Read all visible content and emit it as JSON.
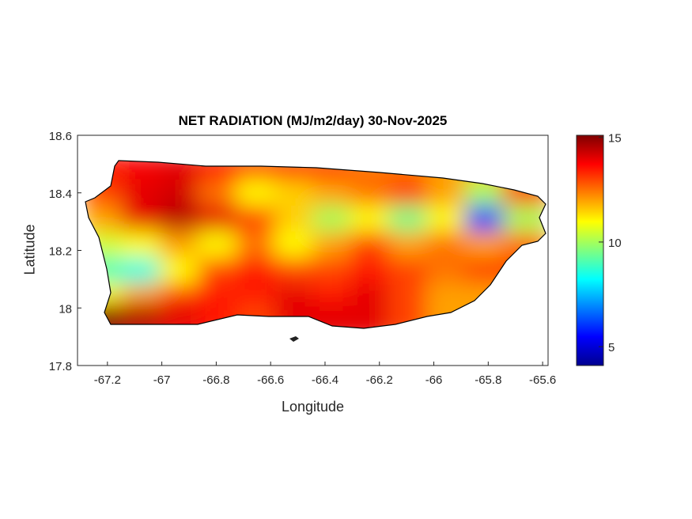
{
  "chart_data": {
    "type": "heatmap",
    "title": "NET RADIATION (MJ/m2/day) 30-Nov-2025",
    "xlabel": "Longitude",
    "ylabel": "Latitude",
    "xlim": [
      -67.31,
      -65.58
    ],
    "ylim": [
      17.8,
      18.6
    ],
    "xticks": [
      -67.2,
      -67,
      -66.8,
      -66.6,
      -66.4,
      -66.2,
      -66,
      -65.8,
      -65.6
    ],
    "xtick_labels": [
      "-67.2",
      "-67",
      "-66.8",
      "-66.6",
      "-66.4",
      "-66.2",
      "-66",
      "-65.8",
      "-65.6"
    ],
    "yticks": [
      18.6,
      18.4,
      18.2,
      18,
      17.8
    ],
    "ytick_labels": [
      "18.6",
      "18.4",
      "18.2",
      "18",
      "17.8"
    ],
    "colorbar": {
      "clim": [
        4.1,
        15.1
      ],
      "ticks": [
        15,
        10,
        5
      ],
      "tick_labels": [
        "15",
        "10",
        "5"
      ],
      "colormap": "jet"
    },
    "grid_lon": [
      -67.2,
      -67.06,
      -66.92,
      -66.78,
      -66.64,
      -66.5,
      -66.36,
      -66.22,
      -66.08,
      -65.94,
      -65.8,
      -65.66
    ],
    "grid_lat": [
      18.47,
      18.38,
      18.29,
      18.2,
      18.11,
      18.02,
      17.95
    ],
    "values": [
      [
        13.5,
        13.8,
        14,
        13.5,
        13,
        13.2,
        13,
        12.5,
        12.5,
        12,
        11.5,
        12
      ],
      [
        13,
        14,
        14.2,
        12.5,
        11,
        11.5,
        12,
        12.5,
        13,
        12,
        10,
        13
      ],
      [
        12,
        14,
        14.5,
        14,
        13,
        11.5,
        10,
        11,
        9.5,
        11,
        6,
        10
      ],
      [
        10.5,
        11,
        12,
        11,
        12.5,
        11,
        12,
        13,
        12,
        12.5,
        12,
        12.5
      ],
      [
        9,
        8.5,
        11,
        13,
        13.5,
        13,
        13,
        13.5,
        13,
        12.5,
        13,
        13
      ],
      [
        11,
        12,
        13,
        13.5,
        13.5,
        14,
        13.5,
        14,
        13,
        12,
        12,
        12
      ],
      [
        15,
        14.5,
        14,
        13.5,
        13,
        14,
        14,
        14,
        13,
        12,
        12,
        12
      ]
    ]
  }
}
